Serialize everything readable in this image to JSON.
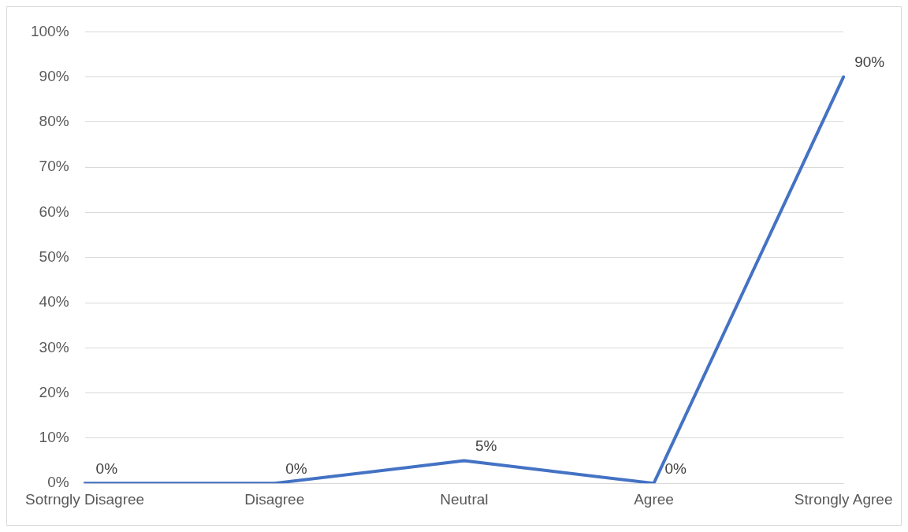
{
  "chart_data": {
    "type": "line",
    "categories": [
      "Sotrngly Disagree",
      "Disagree",
      "Neutral",
      "Agree",
      "Strongly Agree"
    ],
    "series": [
      {
        "color": "#4472c4",
        "values": [
          0,
          0,
          5,
          0,
          90
        ]
      }
    ],
    "value_labels": [
      "0%",
      "0%",
      "5%",
      "0%",
      "90%"
    ],
    "ylim": [
      0,
      100
    ],
    "yticks": [
      {
        "value": 0,
        "label": "0%"
      },
      {
        "value": 10,
        "label": "10%"
      },
      {
        "value": 20,
        "label": "20%"
      },
      {
        "value": 30,
        "label": "30%"
      },
      {
        "value": 40,
        "label": "40%"
      },
      {
        "value": 50,
        "label": "50%"
      },
      {
        "value": 60,
        "label": "60%"
      },
      {
        "value": 70,
        "label": "70%"
      },
      {
        "value": 80,
        "label": "80%"
      },
      {
        "value": 90,
        "label": "90%"
      },
      {
        "value": 100,
        "label": "100%"
      }
    ],
    "grid": "y",
    "marker": "none",
    "line_style": "solid"
  }
}
